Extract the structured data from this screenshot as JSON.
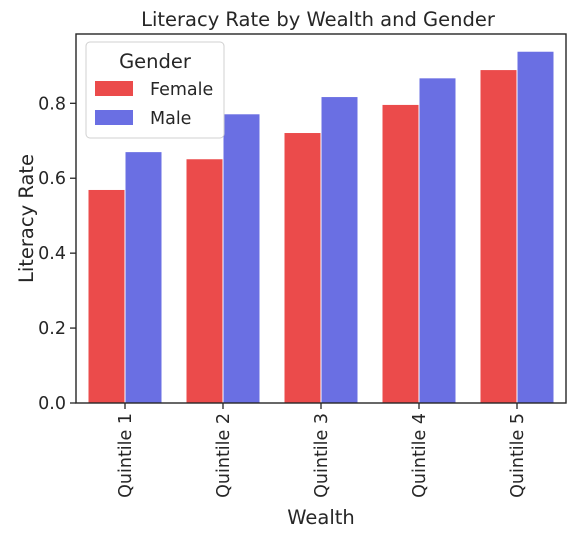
{
  "chart_data": {
    "type": "bar",
    "title": "Literacy Rate by Wealth and Gender",
    "xlabel": "Wealth",
    "ylabel": "Literacy Rate",
    "categories": [
      "Quintile 1",
      "Quintile 2",
      "Quintile 3",
      "Quintile 4",
      "Quintile 5"
    ],
    "series": [
      {
        "name": "Female",
        "color": "#EB4B4B",
        "values": [
          0.57,
          0.652,
          0.722,
          0.797,
          0.89
        ]
      },
      {
        "name": "Male",
        "color": "#6A6FE3",
        "values": [
          0.671,
          0.772,
          0.818,
          0.868,
          0.939
        ]
      }
    ],
    "yticks": [
      "0.0",
      "0.2",
      "0.4",
      "0.6",
      "0.8"
    ],
    "ylim": [
      0,
      0.985
    ],
    "grid": false,
    "legend": {
      "title": "Gender",
      "position": "top-left"
    }
  }
}
